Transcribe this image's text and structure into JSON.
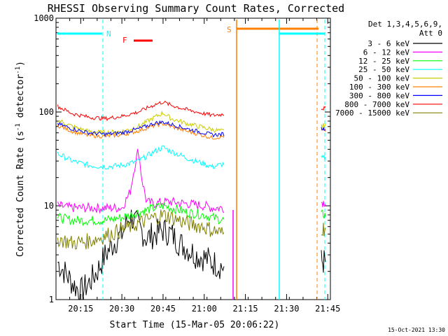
{
  "chart_data": {
    "type": "line",
    "title": "RHESSI Observing Summary Count Rates, Corrected",
    "xlabel": "Start Time (15-Mar-05 20:06:22)",
    "ylabel_main": "Corrected Count Rate (s",
    "ylabel_sup1": "-1",
    "ylabel_mid": " detector",
    "ylabel_sup2": "-1",
    "ylabel_end": ")",
    "y_scale": "log",
    "ylim": [
      1,
      1000
    ],
    "xlim_minutes": [
      20.1,
      21.766
    ],
    "yticks": [
      {
        "value": 1,
        "label": "1"
      },
      {
        "value": 10,
        "label": "10"
      },
      {
        "value": 100,
        "label": "100"
      },
      {
        "value": 1000,
        "label": "1000"
      }
    ],
    "xticks": [
      {
        "value": 20.25,
        "label": "20:15"
      },
      {
        "value": 20.5,
        "label": "20:30"
      },
      {
        "value": 20.75,
        "label": "20:45"
      },
      {
        "value": 21.0,
        "label": "21:00"
      },
      {
        "value": 21.25,
        "label": "21:15"
      },
      {
        "value": 21.5,
        "label": "21:30"
      },
      {
        "value": 21.75,
        "label": "21:45"
      }
    ],
    "legend_header": [
      "Det 1,3,4,5,6,9,",
      "Att 0"
    ],
    "legend_position": "right",
    "series": [
      {
        "name": "3 - 6 keV",
        "color": "#000000",
        "x": [
          20.11,
          20.15,
          20.2,
          20.25,
          20.3,
          20.35,
          20.4,
          20.45,
          20.5,
          20.55,
          20.6,
          20.65,
          20.7,
          20.75,
          20.8,
          20.85,
          20.9,
          20.95,
          21.0,
          21.05,
          21.12
        ],
        "values": [
          2.5,
          2.0,
          1.5,
          1.2,
          1.5,
          2.0,
          3.0,
          4.0,
          5.0,
          8.0,
          6.0,
          4.5,
          5.0,
          5.5,
          5.0,
          4.0,
          3.5,
          3.0,
          2.8,
          2.5,
          2.2
        ]
      },
      {
        "name": "6 - 12 keV",
        "color": "#ff00ff",
        "x": [
          20.11,
          20.2,
          20.3,
          20.4,
          20.5,
          20.55,
          20.58,
          20.6,
          20.62,
          20.65,
          20.7,
          20.75,
          20.8,
          20.9,
          21.0,
          21.05,
          21.12
        ],
        "values": [
          10,
          9.5,
          9.5,
          9.5,
          9.5,
          14,
          28,
          40,
          20,
          11,
          10.5,
          11,
          11,
          10.5,
          10,
          9.5,
          9.5
        ]
      },
      {
        "name": "12 - 25 keV",
        "color": "#00ff00",
        "x": [
          20.11,
          20.2,
          20.3,
          20.4,
          20.5,
          20.6,
          20.7,
          20.75,
          20.8,
          20.9,
          21.0,
          21.05,
          21.12
        ],
        "values": [
          7.5,
          7.0,
          7.0,
          7.0,
          7.5,
          8.5,
          9.5,
          10,
          9.5,
          8.5,
          8,
          7.5,
          7
        ]
      },
      {
        "name": "25 - 50 keV",
        "color": "#00ffff",
        "x": [
          20.11,
          20.2,
          20.3,
          20.4,
          20.5,
          20.6,
          20.7,
          20.75,
          20.8,
          20.9,
          21.0,
          21.05,
          21.12
        ],
        "values": [
          36,
          30,
          27,
          26,
          27,
          30,
          38,
          42,
          38,
          32,
          28,
          26,
          28
        ]
      },
      {
        "name": "50 - 100 keV",
        "color": "#cccc00",
        "x": [
          20.11,
          20.2,
          20.3,
          20.4,
          20.5,
          20.6,
          20.7,
          20.75,
          20.8,
          20.9,
          21.0,
          21.05,
          21.12
        ],
        "values": [
          82,
          70,
          62,
          60,
          62,
          70,
          88,
          98,
          85,
          75,
          68,
          65,
          62
        ]
      },
      {
        "name": "100 - 300 keV",
        "color": "#ff7f00",
        "x": [
          20.11,
          20.2,
          20.3,
          20.4,
          20.5,
          20.6,
          20.7,
          20.75,
          20.8,
          20.9,
          21.0,
          21.05,
          21.12
        ],
        "values": [
          72,
          62,
          56,
          55,
          57,
          63,
          72,
          75,
          70,
          62,
          56,
          53,
          55
        ]
      },
      {
        "name": "300 - 800 keV",
        "color": "#0000ff",
        "x": [
          20.11,
          20.2,
          20.3,
          20.4,
          20.5,
          20.6,
          20.7,
          20.75,
          20.8,
          20.9,
          21.0,
          21.05,
          21.12
        ],
        "values": [
          75,
          66,
          60,
          58,
          60,
          66,
          76,
          78,
          74,
          66,
          60,
          57,
          58
        ]
      },
      {
        "name": "800 - 7000 keV",
        "color": "#ff0000",
        "x": [
          20.11,
          20.2,
          20.3,
          20.4,
          20.5,
          20.6,
          20.7,
          20.75,
          20.8,
          20.9,
          21.0,
          21.05,
          21.12
        ],
        "values": [
          115,
          96,
          88,
          85,
          90,
          100,
          120,
          128,
          118,
          105,
          96,
          92,
          95
        ]
      },
      {
        "name": "7000 - 15000 keV",
        "color": "#808000",
        "x": [
          20.11,
          20.2,
          20.3,
          20.4,
          20.5,
          20.6,
          20.7,
          20.75,
          20.8,
          20.9,
          21.0,
          21.05,
          21.12
        ],
        "values": [
          4.5,
          4.0,
          4.2,
          4.8,
          5.5,
          6.5,
          7.5,
          8.0,
          7.5,
          6.5,
          6.0,
          5.5,
          5.0
        ]
      }
    ],
    "flags": {
      "N_label": "N",
      "F_label": "F",
      "S_label": "S"
    },
    "footer_date": "15-Oct-2021 13:30"
  }
}
